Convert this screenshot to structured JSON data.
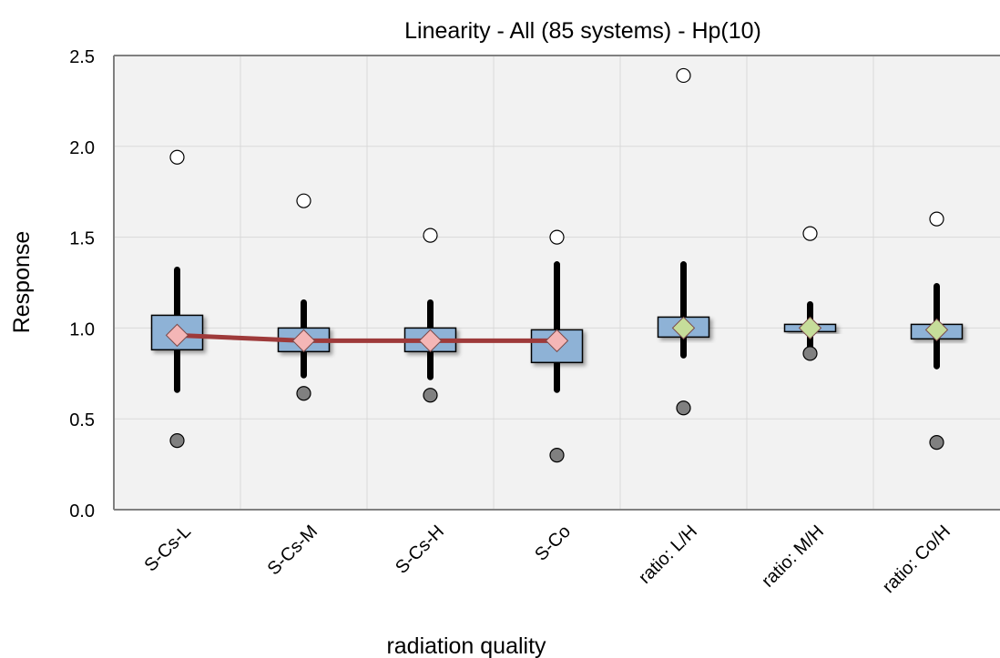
{
  "chart_data": {
    "type": "box",
    "title": "Linearity - All (85 systems) - Hp(10)",
    "xlabel": "radiation quality",
    "ylabel": "Response",
    "ylim": [
      0.0,
      2.5
    ],
    "yticks": [
      "0.0",
      "0.5",
      "1.0",
      "1.5",
      "2.0",
      "2.5"
    ],
    "grid": true,
    "categories": [
      "S-Cs-L",
      "S-Cs-M",
      "S-Cs-H",
      "S-Co",
      "ratio: L/H",
      "ratio: M/H",
      "ratio: Co/H"
    ],
    "boxes": [
      {
        "whisker_low": 0.66,
        "q1": 0.88,
        "q3": 1.07,
        "whisker_high": 1.32,
        "mean": 0.96,
        "outlier_high": 1.94,
        "outlier_low": 0.38
      },
      {
        "whisker_low": 0.74,
        "q1": 0.87,
        "q3": 1.0,
        "whisker_high": 1.14,
        "mean": 0.93,
        "outlier_high": 1.7,
        "outlier_low": 0.64
      },
      {
        "whisker_low": 0.73,
        "q1": 0.87,
        "q3": 1.0,
        "whisker_high": 1.14,
        "mean": 0.93,
        "outlier_high": 1.51,
        "outlier_low": 0.63
      },
      {
        "whisker_low": 0.66,
        "q1": 0.81,
        "q3": 0.99,
        "whisker_high": 1.35,
        "mean": 0.93,
        "outlier_high": 1.5,
        "outlier_low": 0.3
      },
      {
        "whisker_low": 0.85,
        "q1": 0.95,
        "q3": 1.06,
        "whisker_high": 1.35,
        "mean": 1.0,
        "outlier_high": 2.39,
        "outlier_low": 0.56
      },
      {
        "whisker_low": 0.9,
        "q1": 0.98,
        "q3": 1.02,
        "whisker_high": 1.13,
        "mean": 1.0,
        "outlier_high": 1.52,
        "outlier_low": 0.86
      },
      {
        "whisker_low": 0.79,
        "q1": 0.94,
        "q3": 1.02,
        "whisker_high": 1.23,
        "mean": 0.99,
        "outlier_high": 1.6,
        "outlier_low": 0.37
      }
    ],
    "mean_line": {
      "category_indices": [
        0,
        1,
        2,
        3
      ],
      "color": "#9e3a3a"
    },
    "colors": {
      "box_fill": "#8eb2d6",
      "box_stroke": "#000000",
      "whisker": "#000000",
      "mean_marker_primary": "#f4b6b6",
      "mean_marker_ratio": "#c6dd9a",
      "outlier_high_fill": "#ffffff",
      "outlier_low_fill": "#808080",
      "plot_bg": "#f2f2f2",
      "grid": "#d9d9d9",
      "axis": "#808080"
    }
  }
}
